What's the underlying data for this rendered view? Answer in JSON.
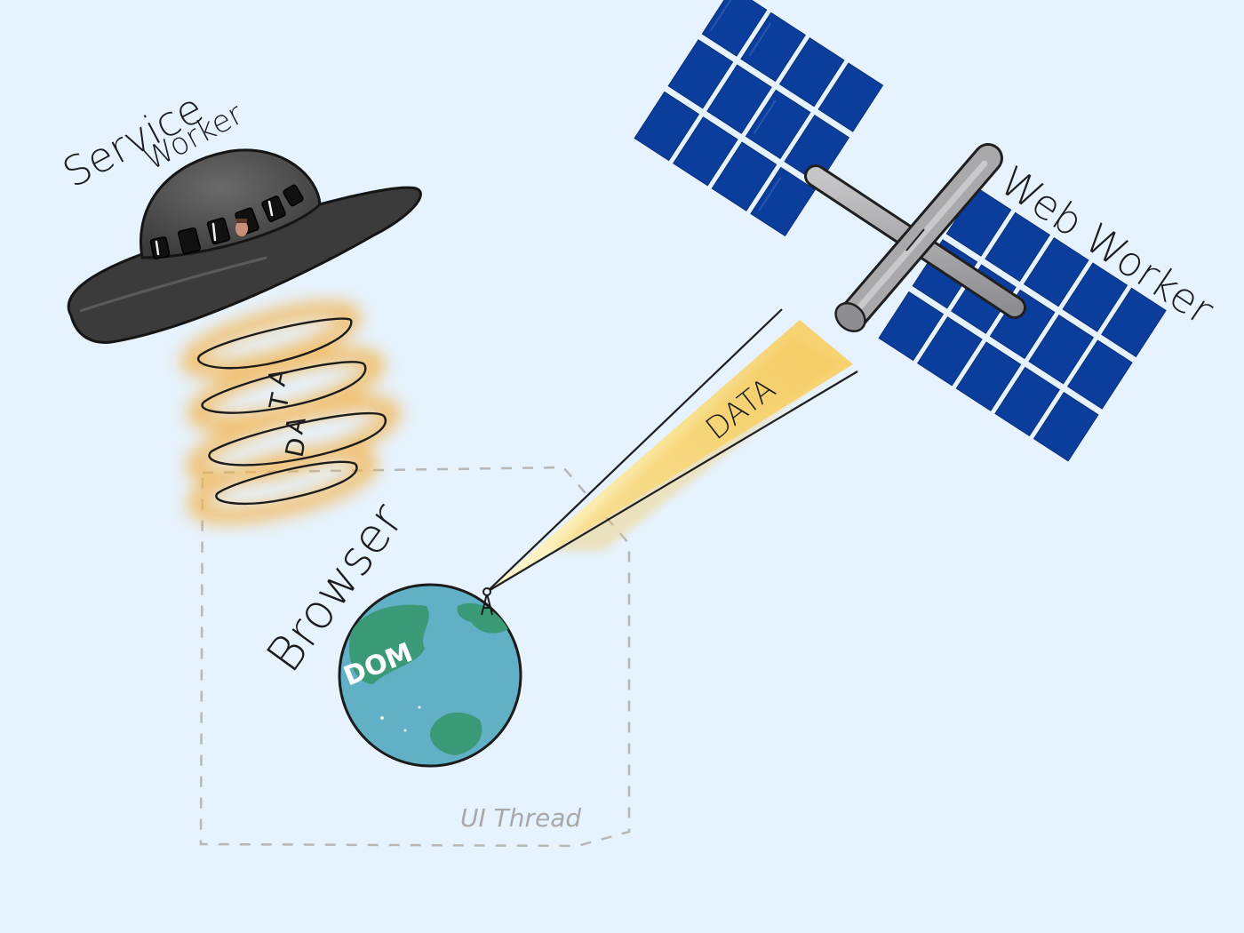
{
  "labels": {
    "service_worker_line1": "Service",
    "service_worker_line2": "Worker",
    "web_worker": "Web Worker",
    "browser": "Browser",
    "dom": "DOM",
    "ui_thread": "UI Thread",
    "beam_text": "DATA",
    "tornado_letters": [
      "D",
      "A",
      "T",
      "A"
    ]
  },
  "colors": {
    "background": "#e6f2fd",
    "solar_panel": "#0b3d9c",
    "station_truss": "#a9a9ab",
    "ufo_body": "#3b3b3b",
    "earth_ocean": "#62b0c6",
    "earth_land": "#3a9a77",
    "data_glow": "#f4b24a",
    "beam": "#f7dc86",
    "dashed_frame": "#b7b7b7"
  },
  "icons": [
    "ufo-icon",
    "space-station-icon",
    "earth-globe-icon",
    "antenna-icon"
  ]
}
